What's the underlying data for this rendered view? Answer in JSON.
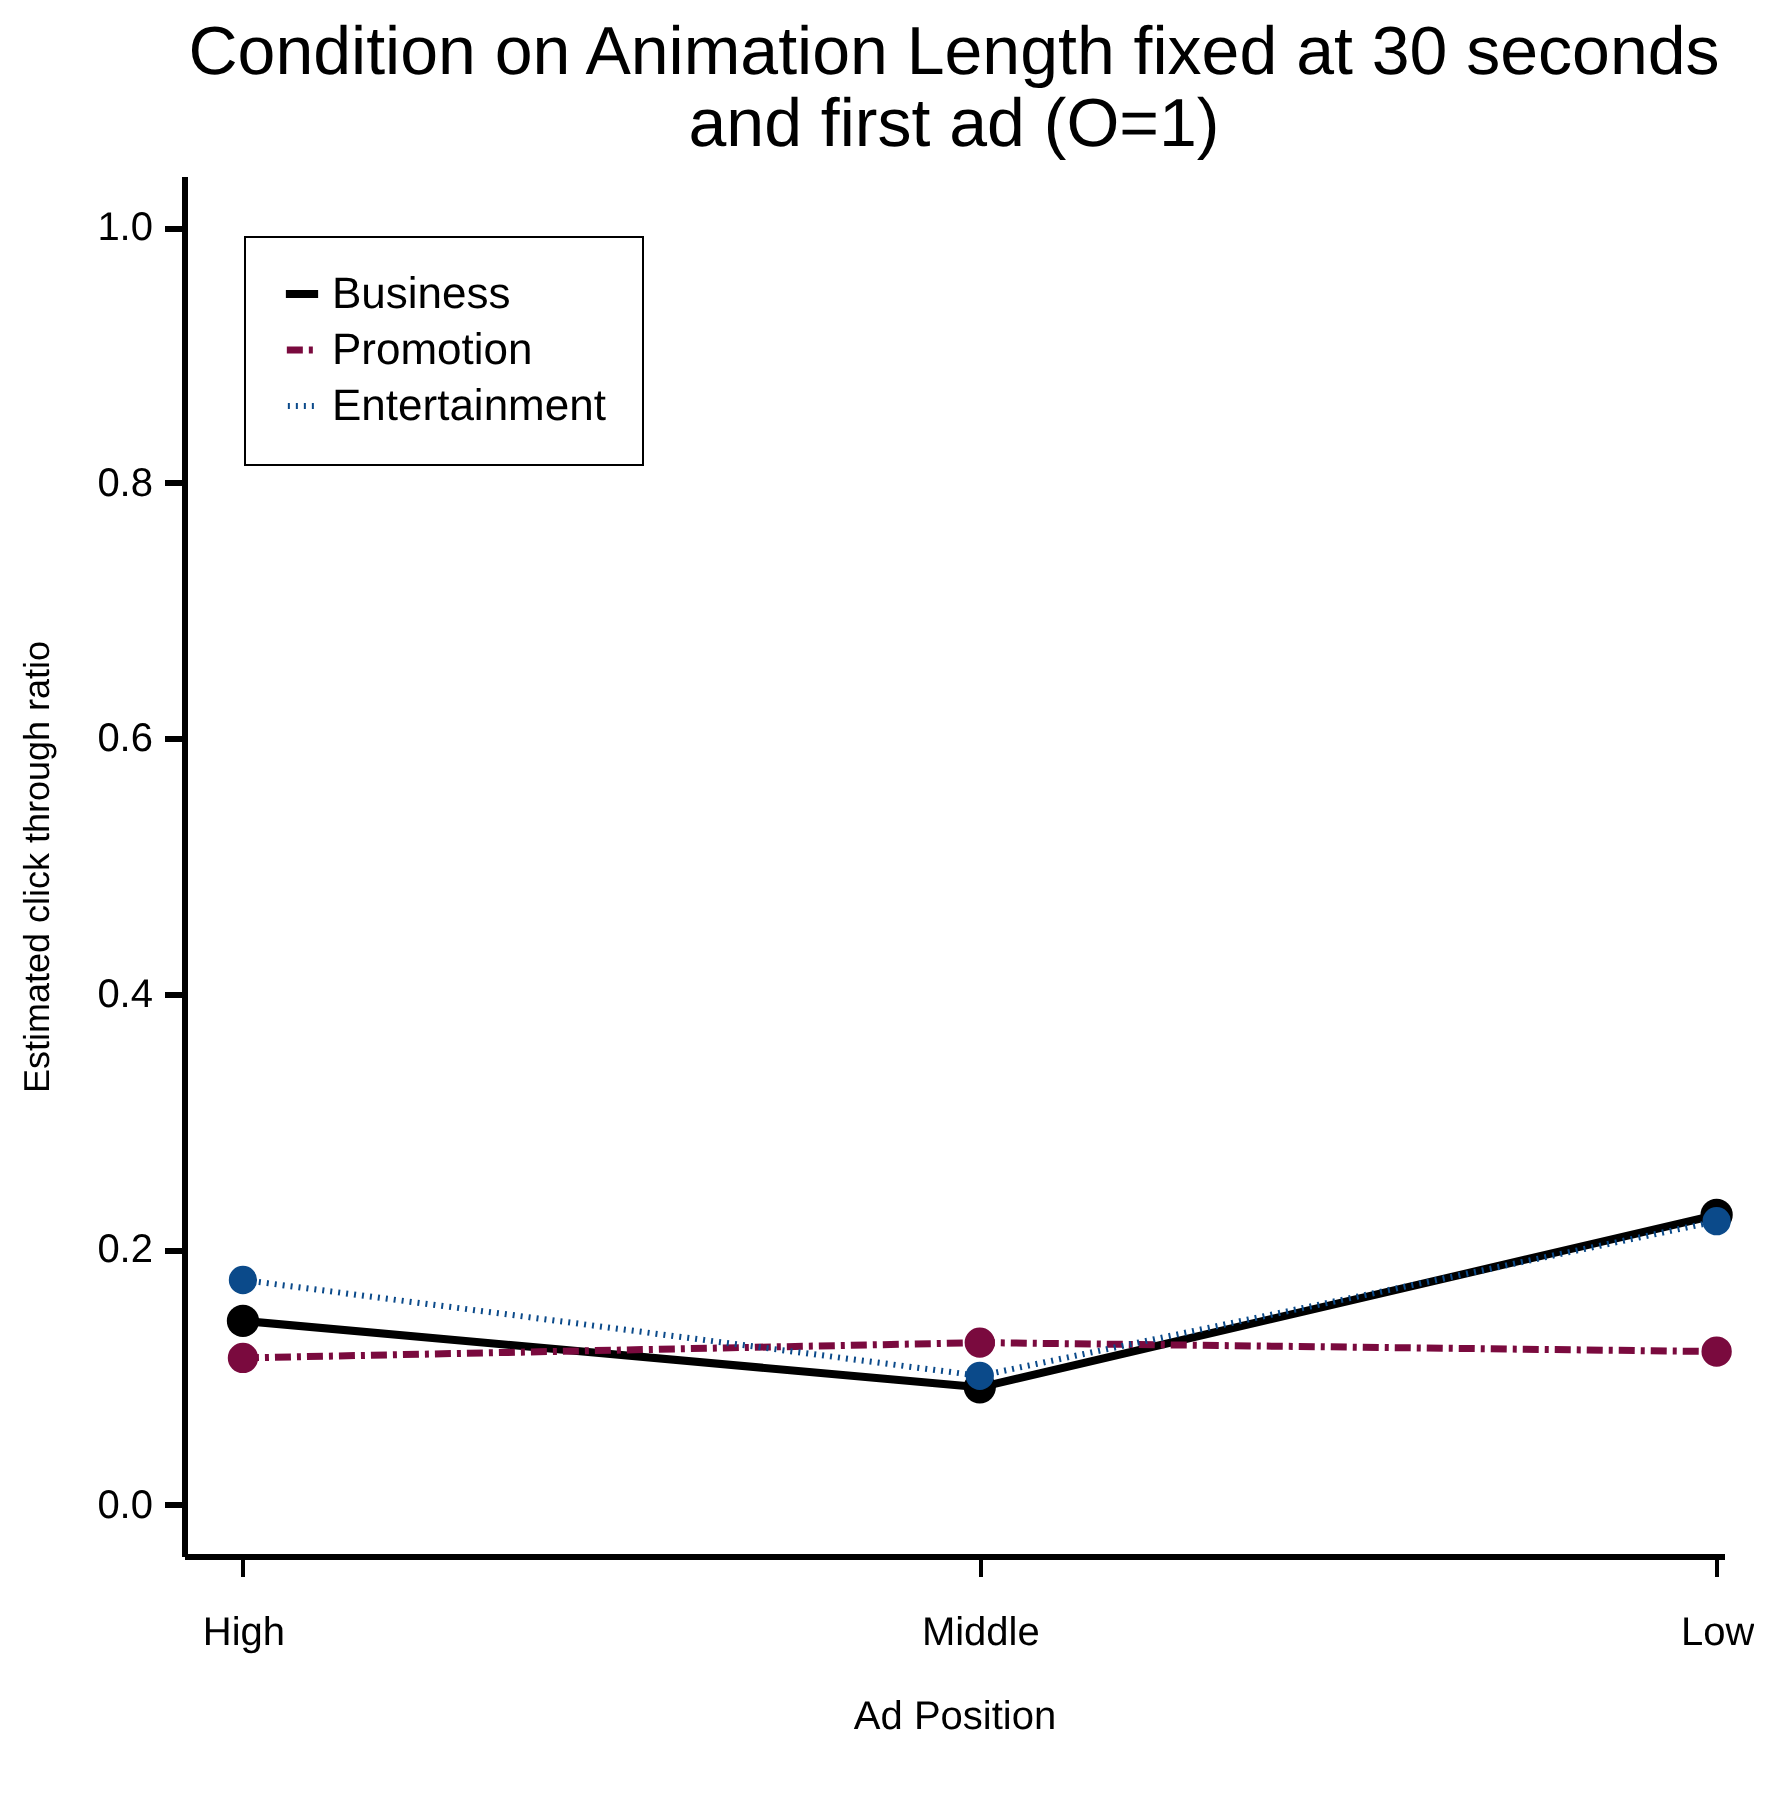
{
  "chart_data": {
    "type": "line",
    "title": "Condition on Animation Length fixed at 30 seconds and first ad (O=1)",
    "xlabel": "Ad Position",
    "ylabel": "Estimated click through ratio",
    "categories": [
      "High",
      "Middle",
      "Low"
    ],
    "series": [
      {
        "name": "Business",
        "color": "#000000",
        "line_style": "solid",
        "values": [
          0.144,
          0.092,
          0.227
        ]
      },
      {
        "name": "Promotion",
        "color": "#7a0a3e",
        "line_style": "dashdot",
        "values": [
          0.115,
          0.127,
          0.12
        ]
      },
      {
        "name": "Entertainment",
        "color": "#0b4a8a",
        "line_style": "dotted",
        "values": [
          0.176,
          0.101,
          0.222
        ]
      }
    ],
    "ylim": [
      -0.04,
      1.04
    ],
    "yticks": [
      {
        "value": 0,
        "label": "0.0"
      },
      {
        "value": 0.2,
        "label": "0.2"
      },
      {
        "value": 0.4,
        "label": "0.4"
      },
      {
        "value": 0.6,
        "label": "0.6"
      },
      {
        "value": 0.8,
        "label": "0.8"
      },
      {
        "value": 1,
        "label": "1.0"
      }
    ],
    "marker": "circle",
    "legend": "top left",
    "grid": false
  }
}
